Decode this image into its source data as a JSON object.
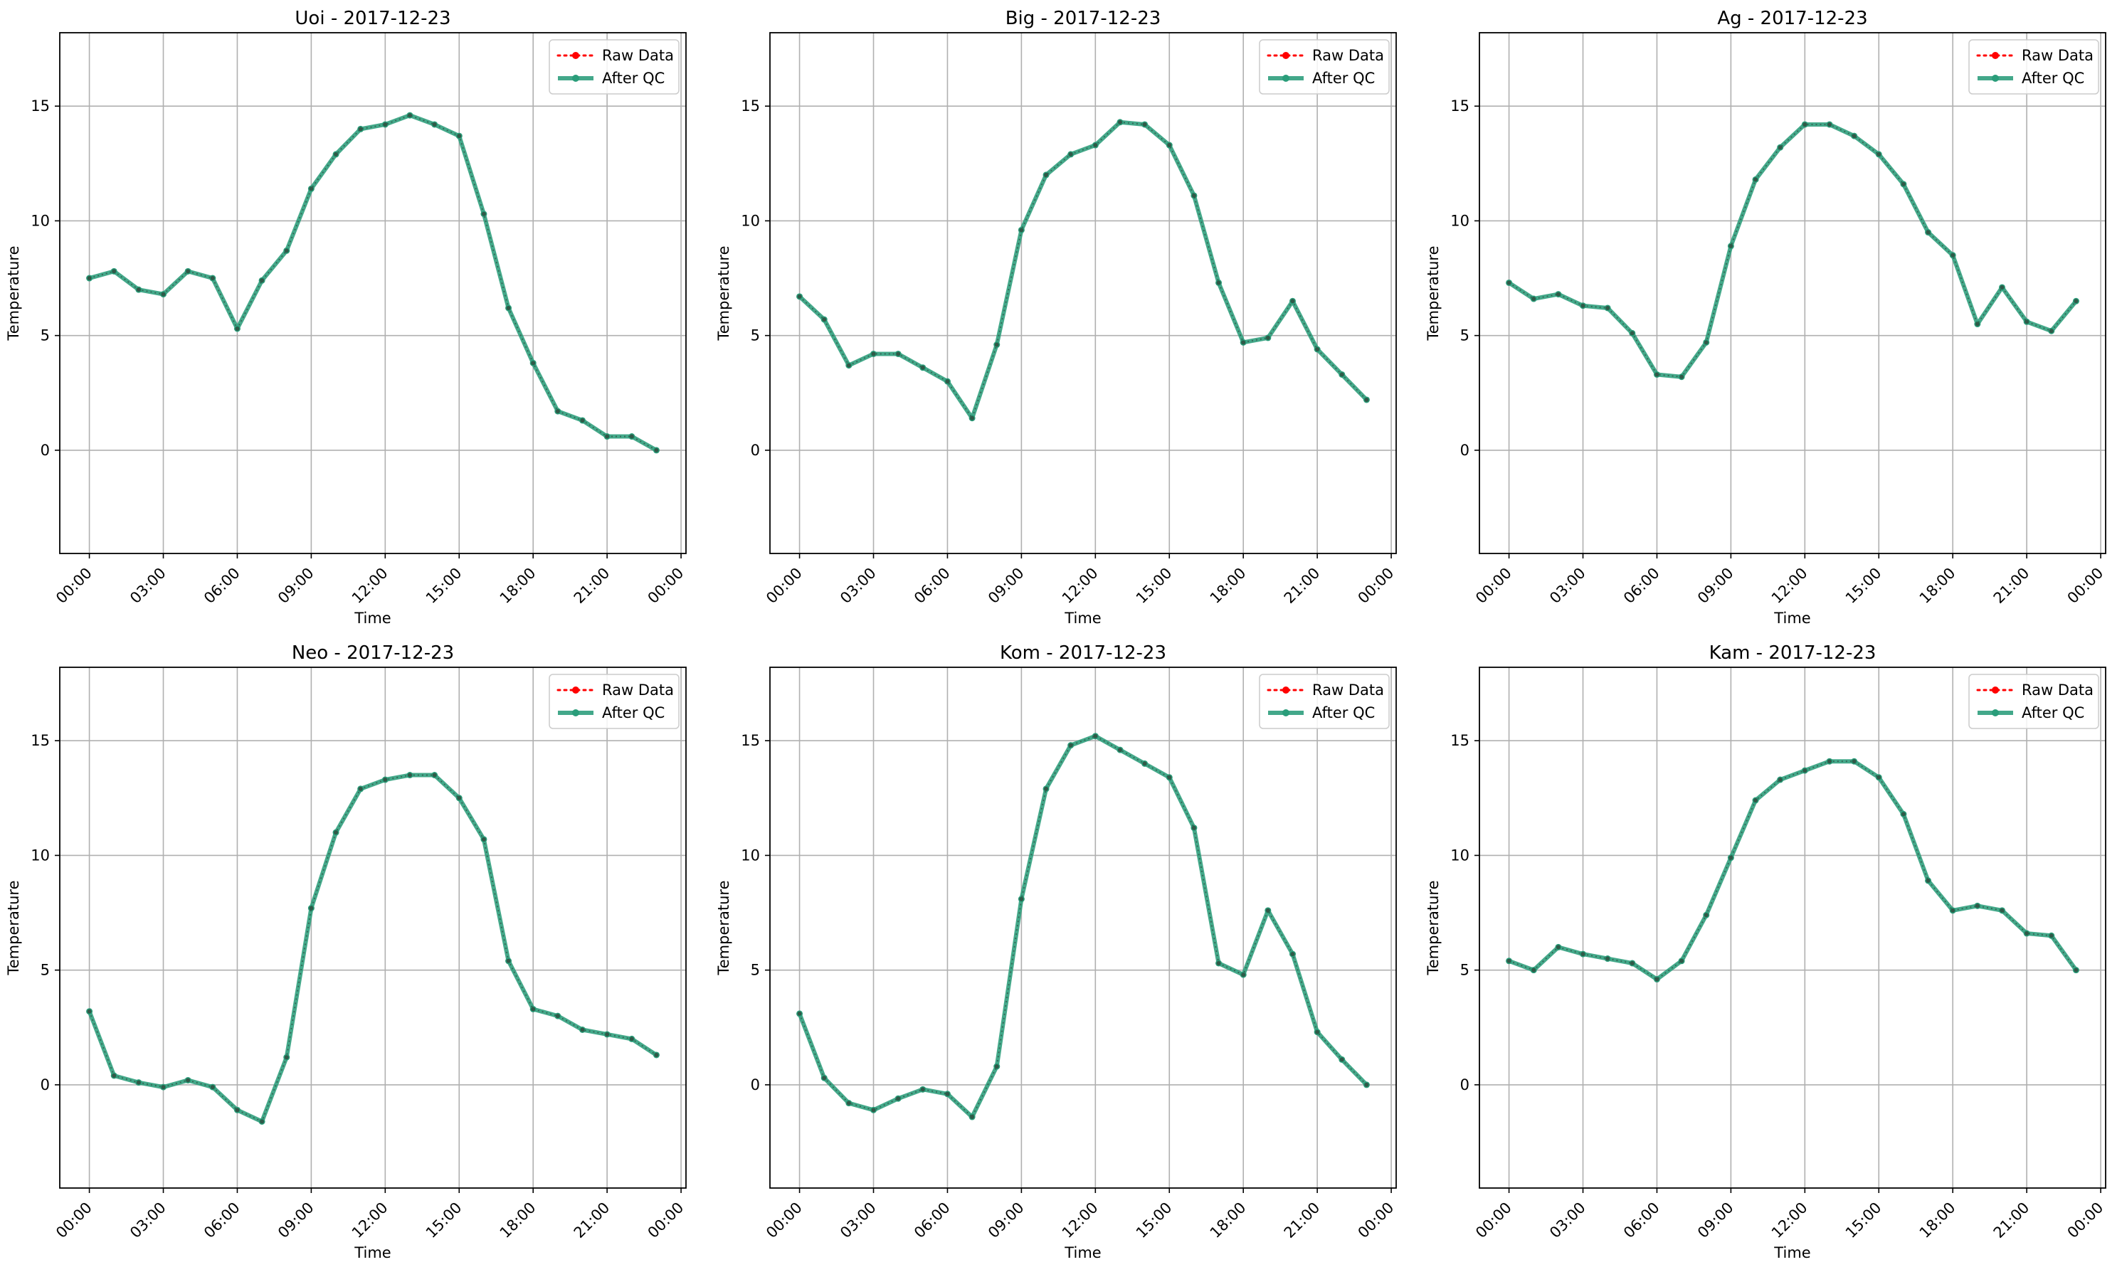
{
  "colors": {
    "raw": "#ff0000",
    "qc": "#2a9d7a",
    "grid": "#b0b0b0",
    "frame": "#000000"
  },
  "chart_data": [
    {
      "type": "line",
      "title": "Uoi - 2017-12-23",
      "xlabel": "Time",
      "ylabel": "Temperature",
      "xticks": [
        "00:00",
        "03:00",
        "06:00",
        "09:00",
        "12:00",
        "15:00",
        "18:00",
        "21:00",
        "00:00"
      ],
      "yticks": [
        0,
        5,
        10,
        15
      ],
      "ylim": [
        -4.5,
        18.2
      ],
      "xlim_hours": [
        -1.2,
        24.2
      ],
      "grid": true,
      "legend": "top-right",
      "x_hours": [
        0,
        1,
        2,
        3,
        4,
        5,
        6,
        7,
        8,
        9,
        10,
        11,
        12,
        13,
        14,
        15,
        16,
        17,
        18,
        19,
        20,
        21,
        22,
        23
      ],
      "series": [
        {
          "name": "Raw Data",
          "style": "dotted",
          "values": [
            7.5,
            7.8,
            7.0,
            6.8,
            7.8,
            7.5,
            5.3,
            7.4,
            8.7,
            11.4,
            12.9,
            14.0,
            14.2,
            14.6,
            14.2,
            13.7,
            10.3,
            6.2,
            3.8,
            1.7,
            1.3,
            0.6,
            0.6,
            0.0
          ]
        },
        {
          "name": "After QC",
          "style": "solid",
          "values": [
            7.5,
            7.8,
            7.0,
            6.8,
            7.8,
            7.5,
            5.3,
            7.4,
            8.7,
            11.4,
            12.9,
            14.0,
            14.2,
            14.6,
            14.2,
            13.7,
            10.3,
            6.2,
            3.8,
            1.7,
            1.3,
            0.6,
            0.6,
            0.0
          ]
        }
      ]
    },
    {
      "type": "line",
      "title": "Big - 2017-12-23",
      "xlabel": "Time",
      "ylabel": "Temperature",
      "xticks": [
        "00:00",
        "03:00",
        "06:00",
        "09:00",
        "12:00",
        "15:00",
        "18:00",
        "21:00",
        "00:00"
      ],
      "yticks": [
        0,
        5,
        10,
        15
      ],
      "ylim": [
        -4.5,
        18.2
      ],
      "xlim_hours": [
        -1.2,
        24.2
      ],
      "grid": true,
      "legend": "top-right",
      "x_hours": [
        0,
        1,
        2,
        3,
        4,
        5,
        6,
        7,
        8,
        9,
        10,
        11,
        12,
        13,
        14,
        15,
        16,
        17,
        18,
        19,
        20,
        21,
        22,
        23
      ],
      "series": [
        {
          "name": "Raw Data",
          "style": "dotted",
          "values": [
            6.7,
            5.7,
            3.7,
            4.2,
            4.2,
            3.6,
            3.0,
            1.4,
            4.6,
            9.6,
            12.0,
            12.9,
            13.3,
            14.3,
            14.2,
            13.3,
            11.1,
            7.3,
            4.7,
            4.9,
            6.5,
            4.4,
            3.3,
            2.2
          ]
        },
        {
          "name": "After QC",
          "style": "solid",
          "values": [
            6.7,
            5.7,
            3.7,
            4.2,
            4.2,
            3.6,
            3.0,
            1.4,
            4.6,
            9.6,
            12.0,
            12.9,
            13.3,
            14.3,
            14.2,
            13.3,
            11.1,
            7.3,
            4.7,
            4.9,
            6.5,
            4.4,
            3.3,
            2.2
          ]
        }
      ]
    },
    {
      "type": "line",
      "title": "Ag - 2017-12-23",
      "xlabel": "Time",
      "ylabel": "Temperature",
      "xticks": [
        "00:00",
        "03:00",
        "06:00",
        "09:00",
        "12:00",
        "15:00",
        "18:00",
        "21:00",
        "00:00"
      ],
      "yticks": [
        0,
        5,
        10,
        15
      ],
      "ylim": [
        -4.5,
        18.2
      ],
      "xlim_hours": [
        -1.2,
        24.2
      ],
      "grid": true,
      "legend": "top-right",
      "x_hours": [
        0,
        1,
        2,
        3,
        4,
        5,
        6,
        7,
        8,
        9,
        10,
        11,
        12,
        13,
        14,
        15,
        16,
        17,
        18,
        19,
        20,
        21,
        22,
        23
      ],
      "series": [
        {
          "name": "Raw Data",
          "style": "dotted",
          "values": [
            7.3,
            6.6,
            6.8,
            6.3,
            6.2,
            5.1,
            3.3,
            3.2,
            4.7,
            8.9,
            11.8,
            13.2,
            14.2,
            14.2,
            13.7,
            12.9,
            11.6,
            9.5,
            8.5,
            5.5,
            7.1,
            5.6,
            5.2,
            6.5
          ]
        },
        {
          "name": "After QC",
          "style": "solid",
          "values": [
            7.3,
            6.6,
            6.8,
            6.3,
            6.2,
            5.1,
            3.3,
            3.2,
            4.7,
            8.9,
            11.8,
            13.2,
            14.2,
            14.2,
            13.7,
            12.9,
            11.6,
            9.5,
            8.5,
            5.5,
            7.1,
            5.6,
            5.2,
            6.5
          ]
        }
      ]
    },
    {
      "type": "line",
      "title": "Neo - 2017-12-23",
      "xlabel": "Time",
      "ylabel": "Temperature",
      "xticks": [
        "00:00",
        "03:00",
        "06:00",
        "09:00",
        "12:00",
        "15:00",
        "18:00",
        "21:00",
        "00:00"
      ],
      "yticks": [
        0,
        5,
        10,
        15
      ],
      "ylim": [
        -4.5,
        18.2
      ],
      "xlim_hours": [
        -1.2,
        24.2
      ],
      "grid": true,
      "legend": "top-right",
      "x_hours": [
        0,
        1,
        2,
        3,
        4,
        5,
        6,
        7,
        8,
        9,
        10,
        11,
        12,
        13,
        14,
        15,
        16,
        17,
        18,
        19,
        20,
        21,
        22,
        23
      ],
      "series": [
        {
          "name": "Raw Data",
          "style": "dotted",
          "values": [
            3.2,
            0.4,
            0.1,
            -0.1,
            0.2,
            -0.1,
            -1.1,
            -1.6,
            1.2,
            7.7,
            11.0,
            12.9,
            13.3,
            13.5,
            13.5,
            12.5,
            10.7,
            5.4,
            3.3,
            3.0,
            2.4,
            2.2,
            2.0,
            1.3
          ]
        },
        {
          "name": "After QC",
          "style": "solid",
          "values": [
            3.2,
            0.4,
            0.1,
            -0.1,
            0.2,
            -0.1,
            -1.1,
            -1.6,
            1.2,
            7.7,
            11.0,
            12.9,
            13.3,
            13.5,
            13.5,
            12.5,
            10.7,
            5.4,
            3.3,
            3.0,
            2.4,
            2.2,
            2.0,
            1.3
          ]
        }
      ]
    },
    {
      "type": "line",
      "title": "Kom - 2017-12-23",
      "xlabel": "Time",
      "ylabel": "Temperature",
      "xticks": [
        "00:00",
        "03:00",
        "06:00",
        "09:00",
        "12:00",
        "15:00",
        "18:00",
        "21:00",
        "00:00"
      ],
      "yticks": [
        0,
        5,
        10,
        15
      ],
      "ylim": [
        -4.5,
        18.2
      ],
      "xlim_hours": [
        -1.2,
        24.2
      ],
      "grid": true,
      "legend": "top-right",
      "x_hours": [
        0,
        1,
        2,
        3,
        4,
        5,
        6,
        7,
        8,
        9,
        10,
        11,
        12,
        13,
        14,
        15,
        16,
        17,
        18,
        19,
        20,
        21,
        22,
        23
      ],
      "series": [
        {
          "name": "Raw Data",
          "style": "dotted",
          "values": [
            3.1,
            0.3,
            -0.8,
            -1.1,
            -0.6,
            -0.2,
            -0.4,
            -1.4,
            0.8,
            8.1,
            12.9,
            14.8,
            15.2,
            14.6,
            14.0,
            13.4,
            11.2,
            5.3,
            4.8,
            7.6,
            5.7,
            2.3,
            1.1,
            0.0
          ]
        },
        {
          "name": "After QC",
          "style": "solid",
          "values": [
            3.1,
            0.3,
            -0.8,
            -1.1,
            -0.6,
            -0.2,
            -0.4,
            -1.4,
            0.8,
            8.1,
            12.9,
            14.8,
            15.2,
            14.6,
            14.0,
            13.4,
            11.2,
            5.3,
            4.8,
            7.6,
            5.7,
            2.3,
            1.1,
            0.0
          ]
        }
      ]
    },
    {
      "type": "line",
      "title": "Kam - 2017-12-23",
      "xlabel": "Time",
      "ylabel": "Temperature",
      "xticks": [
        "00:00",
        "03:00",
        "06:00",
        "09:00",
        "12:00",
        "15:00",
        "18:00",
        "21:00",
        "00:00"
      ],
      "yticks": [
        0,
        5,
        10,
        15
      ],
      "ylim": [
        -4.5,
        18.2
      ],
      "xlim_hours": [
        -1.2,
        24.2
      ],
      "grid": true,
      "legend": "top-right",
      "x_hours": [
        0,
        1,
        2,
        3,
        4,
        5,
        6,
        7,
        8,
        9,
        10,
        11,
        12,
        13,
        14,
        15,
        16,
        17,
        18,
        19,
        20,
        21,
        22,
        23
      ],
      "series": [
        {
          "name": "Raw Data",
          "style": "dotted",
          "values": [
            5.4,
            5.0,
            6.0,
            5.7,
            5.5,
            5.3,
            4.6,
            5.4,
            7.4,
            9.9,
            12.4,
            13.3,
            13.7,
            14.1,
            14.1,
            13.4,
            11.8,
            8.9,
            7.6,
            7.8,
            7.6,
            6.6,
            6.5,
            5.0
          ]
        },
        {
          "name": "After QC",
          "style": "solid",
          "values": [
            5.4,
            5.0,
            6.0,
            5.7,
            5.5,
            5.3,
            4.6,
            5.4,
            7.4,
            9.9,
            12.4,
            13.3,
            13.7,
            14.1,
            14.1,
            13.4,
            11.8,
            8.9,
            7.6,
            7.8,
            7.6,
            6.6,
            6.5,
            5.0
          ]
        }
      ]
    }
  ]
}
